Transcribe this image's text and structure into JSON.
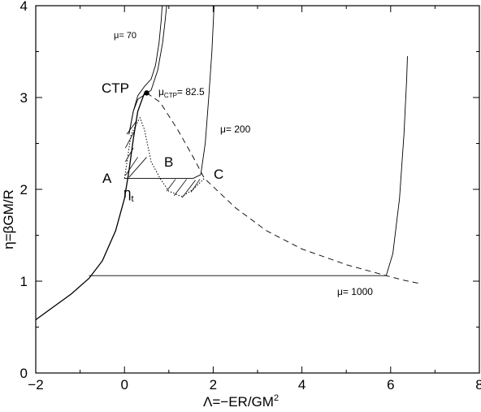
{
  "chart_data": {
    "type": "line",
    "xlabel": "Λ=−ER/GM",
    "xlabel_sup": "2",
    "ylabel": "η=βGM/R",
    "xlim": [
      -2,
      8
    ],
    "ylim": [
      0,
      4
    ],
    "xticks": [
      -2,
      0,
      2,
      4,
      6,
      8
    ],
    "yticks": [
      0,
      1,
      2,
      3,
      4
    ],
    "grid": false,
    "series": [
      {
        "name": "μ= 70",
        "style": "solid",
        "points": [
          [
            0.1,
            2.6
          ],
          [
            0.2,
            2.85
          ],
          [
            0.3,
            3.02
          ],
          [
            0.45,
            3.12
          ],
          [
            0.6,
            3.2
          ],
          [
            0.7,
            3.35
          ],
          [
            0.78,
            3.6
          ],
          [
            0.83,
            3.85
          ],
          [
            0.85,
            4.0
          ]
        ]
      },
      {
        "name": "μ= 82.5",
        "style": "solid",
        "points": [
          [
            0.1,
            2.6
          ],
          [
            0.2,
            2.85
          ],
          [
            0.3,
            2.98
          ],
          [
            0.45,
            3.03
          ],
          [
            0.6,
            3.08
          ],
          [
            0.75,
            3.3
          ],
          [
            0.86,
            3.6
          ],
          [
            0.92,
            3.85
          ],
          [
            0.95,
            4.0
          ]
        ]
      },
      {
        "name": "μ= 200",
        "style": "solid",
        "points": [
          [
            0.0,
            2.12
          ],
          [
            0.4,
            2.12
          ],
          [
            0.8,
            2.12
          ],
          [
            1.2,
            2.12
          ],
          [
            1.55,
            2.12
          ],
          [
            1.72,
            2.16
          ],
          [
            1.82,
            2.5
          ],
          [
            1.9,
            3.0
          ],
          [
            1.97,
            3.5
          ],
          [
            2.02,
            4.0
          ]
        ]
      },
      {
        "name": "μ= 1000",
        "style": "solid",
        "points": [
          [
            -0.8,
            1.06
          ],
          [
            1.0,
            1.06
          ],
          [
            3.0,
            1.06
          ],
          [
            5.0,
            1.06
          ],
          [
            5.9,
            1.06
          ],
          [
            6.05,
            1.3
          ],
          [
            6.2,
            1.9
          ],
          [
            6.3,
            2.6
          ],
          [
            6.36,
            3.2
          ],
          [
            6.38,
            3.45
          ]
        ]
      },
      {
        "name": "",
        "style": "solid-thick",
        "points": [
          [
            -2.0,
            0.58
          ],
          [
            -1.6,
            0.72
          ],
          [
            -1.2,
            0.86
          ],
          [
            -0.8,
            1.03
          ],
          [
            -0.5,
            1.22
          ],
          [
            -0.2,
            1.55
          ],
          [
            0.0,
            1.9
          ],
          [
            0.1,
            2.2
          ],
          [
            0.2,
            2.55
          ],
          [
            0.3,
            2.85
          ],
          [
            0.45,
            3.05
          ]
        ]
      },
      {
        "name": "",
        "style": "dashed",
        "points": [
          [
            0.5,
            3.05
          ],
          [
            0.8,
            2.95
          ],
          [
            1.2,
            2.65
          ],
          [
            1.55,
            2.35
          ],
          [
            1.8,
            2.12
          ],
          [
            2.5,
            1.8
          ],
          [
            3.2,
            1.55
          ],
          [
            4.0,
            1.35
          ],
          [
            5.0,
            1.18
          ],
          [
            5.9,
            1.06
          ],
          [
            6.3,
            1.01
          ],
          [
            6.7,
            0.97
          ]
        ]
      },
      {
        "name": "",
        "style": "dotted",
        "points": [
          [
            0.0,
            2.12
          ],
          [
            0.15,
            2.6
          ],
          [
            0.35,
            2.78
          ],
          [
            0.45,
            2.65
          ],
          [
            0.6,
            2.3
          ],
          [
            0.8,
            2.12
          ],
          [
            1.0,
            1.98
          ],
          [
            1.3,
            1.92
          ],
          [
            1.55,
            2.0
          ],
          [
            1.8,
            2.12
          ]
        ]
      }
    ],
    "annotations": [
      {
        "name": "ctp",
        "text": "CTP",
        "x": 0.5,
        "y": 3.05
      },
      {
        "name": "point-a",
        "text": "A",
        "x": 0.0,
        "y": 2.12
      },
      {
        "name": "point-b",
        "text": "B",
        "x": 0.8,
        "y": 2.12
      },
      {
        "name": "point-c",
        "text": "C",
        "x": 1.8,
        "y": 2.12
      },
      {
        "name": "eta-t",
        "text": "η",
        "sub": "t"
      },
      {
        "name": "mu-ctp",
        "text": "μ",
        "sub": "CTP",
        "suffix": "= 82.5"
      },
      {
        "name": "mu-70",
        "text": "μ= 70"
      },
      {
        "name": "mu-200",
        "text": "μ= 200"
      },
      {
        "name": "mu-1000",
        "text": "μ= 1000"
      }
    ]
  }
}
